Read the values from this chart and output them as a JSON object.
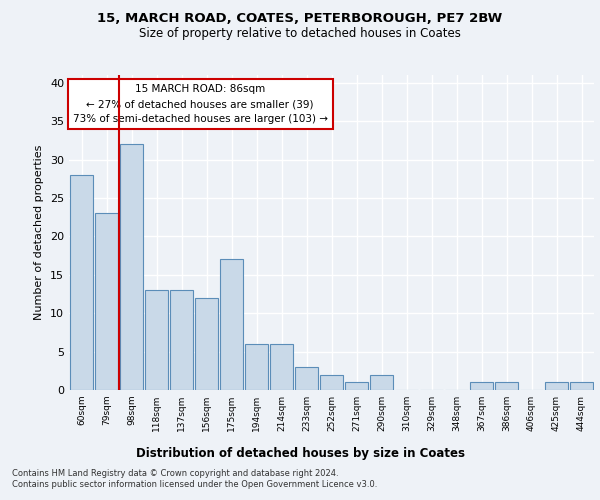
{
  "title1": "15, MARCH ROAD, COATES, PETERBOROUGH, PE7 2BW",
  "title2": "Size of property relative to detached houses in Coates",
  "xlabel": "Distribution of detached houses by size in Coates",
  "ylabel": "Number of detached properties",
  "categories": [
    "60sqm",
    "79sqm",
    "98sqm",
    "118sqm",
    "137sqm",
    "156sqm",
    "175sqm",
    "194sqm",
    "214sqm",
    "233sqm",
    "252sqm",
    "271sqm",
    "290sqm",
    "310sqm",
    "329sqm",
    "348sqm",
    "367sqm",
    "386sqm",
    "406sqm",
    "425sqm",
    "444sqm"
  ],
  "values": [
    28,
    23,
    32,
    13,
    13,
    12,
    17,
    6,
    6,
    3,
    2,
    1,
    2,
    0,
    0,
    0,
    1,
    1,
    0,
    1,
    1
  ],
  "bar_color": "#c9d9e8",
  "bar_edge_color": "#5b8db8",
  "highlight_line_color": "#cc0000",
  "annotation_text": "15 MARCH ROAD: 86sqm\n← 27% of detached houses are smaller (39)\n73% of semi-detached houses are larger (103) →",
  "annotation_box_color": "#ffffff",
  "annotation_box_edge": "#cc0000",
  "ylim": [
    0,
    41
  ],
  "yticks": [
    0,
    5,
    10,
    15,
    20,
    25,
    30,
    35,
    40
  ],
  "footer1": "Contains HM Land Registry data © Crown copyright and database right 2024.",
  "footer2": "Contains public sector information licensed under the Open Government Licence v3.0.",
  "bg_color": "#eef2f7",
  "plot_bg_color": "#eef2f7"
}
